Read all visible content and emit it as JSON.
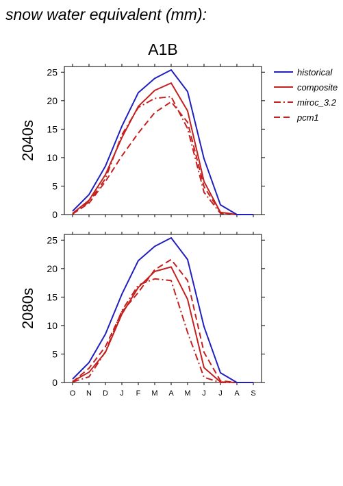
{
  "page_title": "snow water equivalent (mm):",
  "scenario": "A1B",
  "legend": [
    {
      "label": "historical",
      "color": "#1f1fbf",
      "dash": "solid"
    },
    {
      "label": "composite",
      "color": "#c42020",
      "dash": "solid"
    },
    {
      "label": "miroc_3.2",
      "color": "#c42020",
      "dash": "dashdot"
    },
    {
      "label": "pcm1",
      "color": "#c42020",
      "dash": "dash"
    }
  ],
  "chart_data": [
    {
      "type": "line",
      "ylabel": "2040s",
      "categories": [
        "O",
        "N",
        "D",
        "J",
        "F",
        "M",
        "A",
        "M",
        "J",
        "J",
        "A",
        "S"
      ],
      "ylim": [
        0,
        26
      ],
      "yticks": [
        0,
        5,
        10,
        15,
        20,
        25
      ],
      "series": [
        {
          "name": "historical",
          "values": [
            0.6,
            3.5,
            8.5,
            15.5,
            21.4,
            23.9,
            25.4,
            21.6,
            9.8,
            1.7,
            0.0,
            0.0
          ]
        },
        {
          "name": "composite",
          "values": [
            0.2,
            2.5,
            7.0,
            13.5,
            19.0,
            21.8,
            23.1,
            18.2,
            5.8,
            0.4,
            0.0,
            0.0
          ]
        },
        {
          "name": "miroc_3.2",
          "values": [
            0.1,
            2.2,
            6.3,
            14.0,
            18.8,
            20.4,
            20.7,
            15.1,
            3.9,
            0.2,
            0.0,
            0.0
          ]
        },
        {
          "name": "pcm1",
          "values": [
            0.1,
            2.0,
            5.8,
            10.3,
            14.3,
            17.9,
            19.8,
            16.2,
            4.9,
            0.4,
            0.0,
            0.0
          ]
        }
      ]
    },
    {
      "type": "line",
      "ylabel": "2080s",
      "categories": [
        "O",
        "N",
        "D",
        "J",
        "F",
        "M",
        "A",
        "M",
        "J",
        "J",
        "A",
        "S"
      ],
      "ylim": [
        0,
        26
      ],
      "yticks": [
        0,
        5,
        10,
        15,
        20,
        25
      ],
      "series": [
        {
          "name": "historical",
          "values": [
            0.6,
            3.5,
            8.5,
            15.5,
            21.4,
            23.9,
            25.4,
            21.6,
            9.8,
            1.7,
            0.0,
            0.0
          ]
        },
        {
          "name": "composite",
          "values": [
            0.2,
            1.8,
            5.3,
            12.0,
            16.7,
            19.5,
            20.3,
            14.6,
            2.6,
            0.1,
            0.0,
            0.0
          ]
        },
        {
          "name": "miroc_3.2",
          "values": [
            0.1,
            1.0,
            5.4,
            12.6,
            17.1,
            18.2,
            17.9,
            8.8,
            0.9,
            0.0,
            0.0,
            0.0
          ]
        },
        {
          "name": "pcm1",
          "values": [
            0.1,
            2.5,
            6.3,
            12.4,
            15.8,
            19.8,
            21.6,
            17.9,
            5.3,
            0.3,
            0.0,
            0.0
          ]
        }
      ]
    }
  ]
}
